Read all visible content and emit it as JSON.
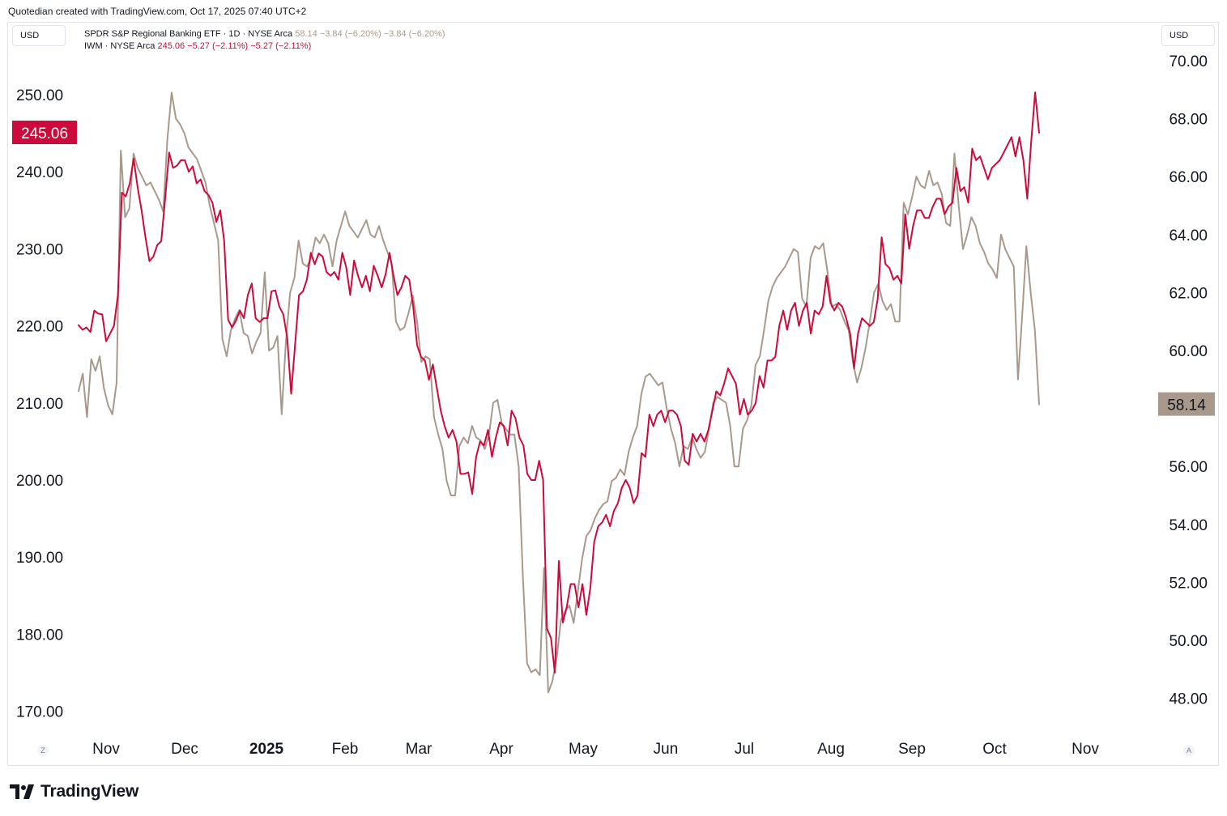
{
  "header": {
    "credit": "Quotedian created with TradingView.com, Oct 17, 2025 07:40 UTC+2"
  },
  "currency_left": "USD",
  "currency_right": "USD",
  "legend": {
    "series1": {
      "name": "SPDR S&P Regional Banking ETF · 1D · NYSE Arca",
      "values": "58.14  −3.84 (−6.20%)  −3.84 (−6.20%)"
    },
    "series2": {
      "name": "IWM · NYSE Arca",
      "values": "245.06  −5.27 (−2.11%)  −5.27 (−2.11%)"
    }
  },
  "footer": {
    "brand": "TradingView",
    "logo_icon": "tradingview-logo-icon"
  },
  "buttons": {
    "left": "Z",
    "right": "A"
  },
  "colors": {
    "kre": "#a8998c",
    "iwm": "#cc0a3c",
    "grid": "#e0e3eb"
  },
  "chart_data": {
    "type": "line",
    "x_labels": [
      "Nov",
      "Dec",
      "2025",
      "Feb",
      "Mar",
      "Apr",
      "May",
      "Jun",
      "Jul",
      "Aug",
      "Sep",
      "Oct",
      "Nov"
    ],
    "left_axis": {
      "ticks": [
        "250.00",
        "240.00",
        "230.00",
        "220.00",
        "210.00",
        "200.00",
        "190.00",
        "180.00",
        "170.00"
      ],
      "last_value_label": "245.06"
    },
    "right_axis": {
      "ticks": [
        "70.00",
        "68.00",
        "66.00",
        "64.00",
        "62.00",
        "60.00",
        "58.00",
        "56.00",
        "54.00",
        "52.00",
        "50.00",
        "48.00"
      ],
      "last_value_label": "58.14"
    },
    "series": [
      {
        "name": "IWM",
        "axis": "left",
        "values": [
          220.1,
          219.5,
          219.8,
          219.2,
          222.0,
          221.6,
          221.5,
          218.0,
          219.0,
          220.0,
          224.0,
          237.3,
          236.8,
          238.5,
          241.7,
          238.0,
          235.0,
          231.5,
          228.4,
          229.0,
          230.5,
          231.0,
          236.5,
          242.5,
          240.5,
          240.8,
          241.5,
          241.5,
          240.0,
          240.7,
          238.5,
          239.0,
          237.5,
          237.0,
          236.0,
          233.5,
          235.0,
          231.0,
          220.8,
          219.8,
          220.7,
          222.0,
          221.0,
          224.0,
          225.5,
          221.0,
          220.5,
          221.0,
          221.0,
          224.5,
          224.6,
          222.5,
          221.5,
          218.5,
          211.2,
          217.5,
          224.0,
          224.5,
          226.0,
          229.5,
          228.0,
          229.4,
          229.0,
          227.0,
          226.5,
          227.0,
          226.0,
          229.5,
          227.6,
          224.0,
          228.5,
          226.5,
          225.0,
          226.5,
          224.5,
          227.8,
          226.5,
          225.0,
          226.7,
          229.5,
          226.5,
          224.0,
          225.0,
          226.5,
          226.0,
          222.5,
          217.5,
          216.0,
          215.5,
          213.0,
          215.0,
          212.0,
          209.0,
          207.0,
          205.5,
          206.5,
          205.0,
          200.8,
          200.8,
          201.0,
          198.2,
          203.0,
          205.0,
          204.5,
          206.5,
          203.0,
          205.5,
          207.5,
          207.0,
          204.5,
          209.0,
          208.0,
          205.5,
          204.5,
          200.8,
          200.0,
          200.0,
          202.5,
          200.0,
          180.7,
          179.5,
          175.0,
          189.5,
          181.5,
          183.5,
          186.5,
          186.5,
          183.5,
          186.5,
          182.5,
          186.0,
          192.0,
          194.0,
          194.5,
          195.5,
          194.0,
          196.0,
          197.0,
          199.0,
          200.0,
          199.0,
          197.0,
          198.0,
          203.5,
          203.0,
          208.5,
          207.0,
          208.5,
          209.0,
          207.5,
          209.0,
          209.0,
          208.5,
          207.0,
          202.5,
          202.0,
          206.0,
          205.0,
          206.0,
          205.0,
          206.5,
          209.0,
          211.5,
          211.0,
          212.5,
          214.5,
          213.5,
          212.5,
          208.5,
          210.5,
          208.5,
          209.0,
          210.0,
          213.5,
          212.0,
          215.5,
          215.5,
          216.0,
          220.0,
          222.0,
          219.5,
          222.0,
          223.0,
          220.0,
          222.0,
          223.0,
          219.0,
          222.0,
          221.5,
          222.5,
          226.5,
          223.0,
          222.0,
          223.0,
          222.5,
          221.0,
          219.0,
          214.5,
          219.0,
          221.0,
          220.5,
          220.0,
          220.5,
          223.5,
          231.5,
          228.0,
          227.5,
          226.0,
          226.5,
          225.5,
          234.5,
          230.0,
          233.0,
          235.0,
          235.0,
          234.0,
          234.0,
          235.5,
          236.5,
          236.5,
          234.5,
          235.5,
          236.0,
          240.5,
          237.5,
          238.0,
          236.0,
          243.0,
          241.5,
          242.0,
          240.5,
          239.0,
          240.5,
          241.0,
          241.5,
          242.5,
          243.5,
          244.5,
          242.0,
          244.5,
          241.5,
          236.5,
          244.0,
          250.3,
          245.06
        ]
      },
      {
        "name": "KRE",
        "axis": "right",
        "values": [
          58.6,
          59.2,
          57.7,
          59.7,
          59.3,
          59.8,
          58.7,
          58.1,
          57.8,
          58.9,
          66.9,
          64.6,
          64.9,
          66.8,
          66.3,
          66.0,
          65.7,
          65.8,
          65.5,
          65.2,
          64.8,
          67.3,
          68.9,
          68.0,
          67.8,
          67.5,
          67.0,
          66.8,
          66.6,
          66.2,
          65.8,
          65.0,
          64.4,
          63.8,
          60.4,
          59.8,
          60.7,
          61.1,
          61.4,
          60.6,
          60.5,
          59.9,
          60.3,
          60.6,
          62.7,
          60.0,
          60.1,
          60.5,
          57.8,
          60.3,
          62.0,
          62.5,
          63.8,
          63.0,
          62.9,
          63.2,
          63.9,
          63.7,
          64.0,
          63.7,
          62.9,
          63.8,
          64.3,
          64.8,
          64.3,
          64.1,
          63.9,
          64.2,
          64.5,
          64.0,
          63.9,
          64.3,
          63.8,
          63.4,
          63.0,
          61.0,
          60.7,
          60.8,
          61.3,
          61.9,
          61.0,
          59.6,
          59.8,
          59.7,
          57.7,
          57.1,
          56.6,
          55.5,
          55.0,
          55.0,
          56.7,
          57.0,
          56.8,
          57.4,
          57.0,
          56.9,
          56.6,
          57.1,
          58.2,
          58.3,
          57.5,
          57.3,
          57.1,
          57.1,
          56.0,
          52.2,
          49.2,
          48.9,
          49.0,
          48.8,
          52.5,
          48.2,
          48.6,
          49.4,
          50.7,
          51.0,
          51.2,
          50.6,
          51.7,
          52.8,
          53.6,
          53.8,
          54.2,
          54.5,
          54.7,
          54.8,
          55.5,
          55.6,
          55.9,
          55.7,
          56.5,
          57.0,
          57.4,
          58.5,
          59.1,
          59.2,
          59.0,
          58.8,
          58.9,
          58.0,
          57.3,
          56.8,
          56.0,
          56.7,
          56.6,
          57.0,
          56.6,
          56.3,
          56.5,
          57.3,
          58.2,
          58.4,
          58.3,
          58.2,
          57.4,
          56.0,
          56.0,
          57.3,
          57.6,
          58.1,
          59.5,
          59.8,
          60.7,
          61.7,
          62.2,
          62.5,
          62.7,
          62.9,
          63.2,
          63.5,
          63.4,
          61.8,
          61.5,
          63.2,
          63.6,
          63.5,
          63.7,
          62.7,
          61.5,
          61.6,
          61.4,
          61.0,
          60.7,
          59.6,
          58.9,
          59.4,
          60.1,
          61.0,
          62.0,
          62.3,
          61.7,
          61.4,
          61.6,
          61.0,
          61.0,
          65.1,
          64.7,
          65.3,
          66.0,
          65.7,
          65.6,
          66.2,
          65.7,
          65.8,
          65.4,
          64.4,
          64.3,
          66.8,
          65.0,
          63.5,
          64.0,
          64.6,
          64.3,
          63.7,
          63.4,
          63.0,
          62.8,
          62.5,
          64.0,
          63.5,
          63.2,
          62.9,
          59.0,
          61.2,
          63.6,
          62.0,
          60.7,
          58.14
        ]
      }
    ]
  }
}
